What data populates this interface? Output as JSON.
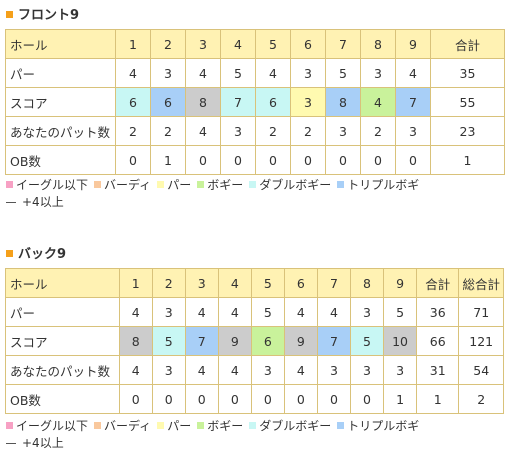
{
  "colors": {
    "eagle_or_better": "#f7a1c4",
    "birdie": "#f9c89d",
    "par": "#fffab0",
    "bogey": "#c9f29b",
    "double_bogey": "#c8f7f4",
    "triple_bogey": "#a8cff7",
    "plus4_or_more": "#cccccc",
    "header_bg": "#fff2b3",
    "border": "#d9c27a",
    "title_mark": "#f5a01a"
  },
  "front": {
    "title": "フロント9",
    "headers": [
      "ホール",
      "1",
      "2",
      "3",
      "4",
      "5",
      "6",
      "7",
      "8",
      "9",
      "合計"
    ],
    "rows": [
      {
        "label": "パー",
        "cells": [
          "4",
          "3",
          "4",
          "5",
          "4",
          "3",
          "5",
          "3",
          "4"
        ],
        "total": "35"
      },
      {
        "label": "スコア",
        "cells": [
          "6",
          "6",
          "8",
          "7",
          "6",
          "3",
          "8",
          "4",
          "7"
        ],
        "total": "55",
        "colors": [
          "double_bogey",
          "triple_bogey",
          "plus4_or_more",
          "double_bogey",
          "double_bogey",
          "par",
          "triple_bogey",
          "bogey",
          "triple_bogey"
        ]
      },
      {
        "label": "あなたのパット数",
        "cells": [
          "2",
          "2",
          "4",
          "3",
          "2",
          "2",
          "3",
          "2",
          "3"
        ],
        "total": "23"
      },
      {
        "label": "OB数",
        "cells": [
          "0",
          "1",
          "0",
          "0",
          "0",
          "0",
          "0",
          "0",
          "0"
        ],
        "total": "1"
      }
    ]
  },
  "back": {
    "title": "バック9",
    "headers": [
      "ホール",
      "1",
      "2",
      "3",
      "4",
      "5",
      "6",
      "7",
      "8",
      "9",
      "合計",
      "総合計"
    ],
    "rows": [
      {
        "label": "パー",
        "cells": [
          "4",
          "3",
          "4",
          "4",
          "5",
          "4",
          "4",
          "3",
          "5"
        ],
        "total": "36",
        "grand": "71"
      },
      {
        "label": "スコア",
        "cells": [
          "8",
          "5",
          "7",
          "9",
          "6",
          "9",
          "7",
          "5",
          "10"
        ],
        "total": "66",
        "grand": "121",
        "colors": [
          "plus4_or_more",
          "double_bogey",
          "triple_bogey",
          "plus4_or_more",
          "bogey",
          "plus4_or_more",
          "triple_bogey",
          "double_bogey",
          "plus4_or_more"
        ]
      },
      {
        "label": "あなたのパット数",
        "cells": [
          "4",
          "3",
          "4",
          "4",
          "3",
          "4",
          "3",
          "3",
          "3"
        ],
        "total": "31",
        "grand": "54"
      },
      {
        "label": "OB数",
        "cells": [
          "0",
          "0",
          "0",
          "0",
          "0",
          "0",
          "0",
          "0",
          "1"
        ],
        "total": "1",
        "grand": "2"
      }
    ]
  },
  "legend": [
    {
      "key": "eagle_or_better",
      "label": "イーグル以下"
    },
    {
      "key": "birdie",
      "label": "バーディ"
    },
    {
      "key": "par",
      "label": "パー"
    },
    {
      "key": "bogey",
      "label": "ボギー"
    },
    {
      "key": "double_bogey",
      "label": "ダブルボギー"
    },
    {
      "key": "triple_bogey",
      "label": "トリプルボギ"
    }
  ],
  "legend_plus4": "+4以上"
}
